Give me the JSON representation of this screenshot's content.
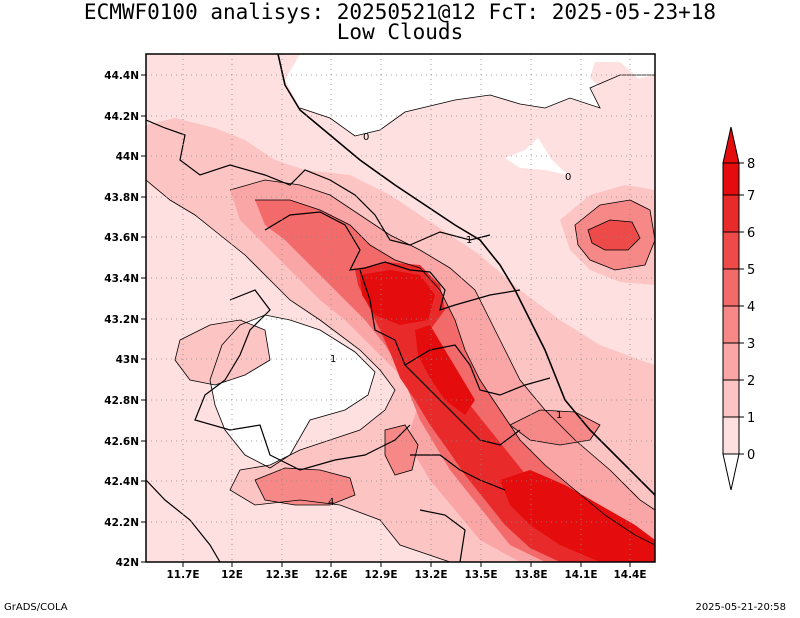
{
  "title": {
    "line1": "ECMWF0100 analisys: 20250521@12 FcT: 2025-05-23+18",
    "line2": "Low Clouds"
  },
  "axes": {
    "x_ticks": [
      "11.7E",
      "12E",
      "12.3E",
      "12.6E",
      "12.9E",
      "13.2E",
      "13.5E",
      "13.8E",
      "14.1E",
      "14.4E"
    ],
    "y_ticks": [
      "44.4N",
      "44.2N",
      "44N",
      "43.8N",
      "43.6N",
      "43.4N",
      "43.2N",
      "43N",
      "42.8N",
      "42.6N",
      "42.4N",
      "42.2N",
      "42N"
    ]
  },
  "colorbar": {
    "labels": [
      "0",
      "1",
      "2",
      "3",
      "4",
      "5",
      "6",
      "7",
      "8"
    ],
    "colors": [
      "#ffffff",
      "#fee0e0",
      "#fdc4c4",
      "#fba6a6",
      "#f78888",
      "#f36a6a",
      "#ee4a4a",
      "#e92a2a",
      "#e40c0c"
    ]
  },
  "contour_labels": [
    "0",
    "0",
    "1",
    "1",
    "1",
    "4"
  ],
  "footer": {
    "left": "GrADS/COLA",
    "right": "2025-05-21-20:58"
  },
  "colors": {
    "background_field": "#fee0e0",
    "contour_line": "#000000",
    "coastline": "#000000"
  }
}
